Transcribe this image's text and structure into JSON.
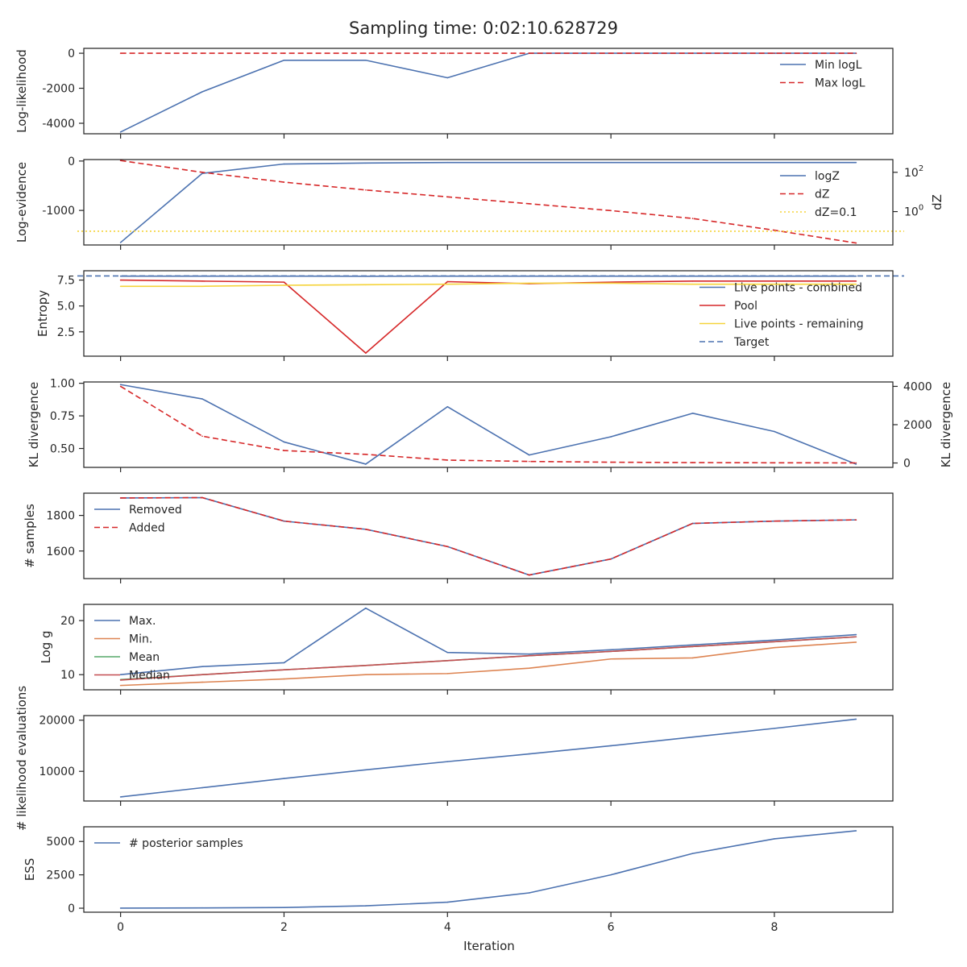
{
  "title": "Sampling time: 0:02:10.628729",
  "xlabel": "Iteration",
  "x_ticks": [
    "0",
    "2",
    "4",
    "6",
    "8"
  ],
  "colors": {
    "blue": "#4c72b0",
    "red": "#d62728",
    "yellow": "#f5d33a",
    "orange": "#dd8452",
    "green": "#55a868",
    "median_red": "#c44e52"
  },
  "chart_data": [
    {
      "type": "line",
      "ylabel": "Log-likelihood",
      "x": [
        0,
        1,
        2,
        3,
        4,
        5,
        6,
        7,
        8,
        9
      ],
      "ylim": [
        -4600,
        280
      ],
      "yticks": [
        -4000,
        -2000,
        0
      ],
      "legend": "top-right",
      "series": [
        {
          "name": "Min logL",
          "color": "#4c72b0",
          "dash": "solid",
          "values": [
            -4500,
            -2200,
            -400,
            -400,
            -1400,
            0,
            0,
            0,
            0,
            0
          ]
        },
        {
          "name": "Max logL",
          "color": "#d62728",
          "dash": "dashed",
          "values": [
            0,
            0,
            0,
            0,
            0,
            0,
            0,
            0,
            0,
            0
          ]
        }
      ]
    },
    {
      "type": "line",
      "ylabel": "Log-evidence",
      "ylabel_right": "dZ",
      "x": [
        0,
        1,
        2,
        3,
        4,
        5,
        6,
        7,
        8,
        9
      ],
      "ylim": [
        -1700,
        30
      ],
      "yticks": [
        -1000,
        0
      ],
      "right_scale": "log",
      "right_ylim_log10": [
        -1.7,
        2.65
      ],
      "right_yticks": [
        {
          "label": "10",
          "exp": "2",
          "log10": 2
        },
        {
          "label": "10",
          "exp": "0",
          "log10": 0
        }
      ],
      "legend": "top-right",
      "series": [
        {
          "name": "logZ",
          "color": "#4c72b0",
          "dash": "solid",
          "axis": "left",
          "values": [
            -1650,
            -250,
            -60,
            -40,
            -30,
            -30,
            -30,
            -30,
            -30,
            -30
          ]
        },
        {
          "name": "dZ",
          "color": "#d62728",
          "dash": "dashed",
          "axis": "right",
          "values_log10": [
            2.6,
            2.0,
            1.5,
            1.1,
            0.75,
            0.4,
            0.05,
            -0.35,
            -0.95,
            -1.6
          ]
        },
        {
          "name": "dZ=0.1",
          "color": "#f5d33a",
          "dash": "dotted",
          "axis": "right",
          "hline_log10": -1
        }
      ]
    },
    {
      "type": "line",
      "ylabel": "Entropy",
      "x": [
        0,
        1,
        2,
        3,
        4,
        5,
        6,
        7,
        8,
        9
      ],
      "ylim": [
        0.15,
        8.4
      ],
      "yticks": [
        2.5,
        5.0,
        7.5
      ],
      "ytick_labels": [
        "2.5",
        "5.0",
        "7.5"
      ],
      "legend": "bottom-right",
      "series": [
        {
          "name": "Live points - combined",
          "color": "#4c72b0",
          "dash": "solid",
          "values": [
            7.88,
            7.88,
            7.88,
            7.87,
            7.88,
            7.88,
            7.88,
            7.88,
            7.88,
            7.88
          ]
        },
        {
          "name": "Pool",
          "color": "#d62728",
          "dash": "solid",
          "values": [
            7.5,
            7.4,
            7.3,
            0.45,
            7.35,
            7.15,
            7.3,
            7.4,
            7.4,
            7.4
          ]
        },
        {
          "name": "Live points - remaining",
          "color": "#f5d33a",
          "dash": "solid",
          "values": [
            6.9,
            6.9,
            7.0,
            7.05,
            7.1,
            7.2,
            7.2,
            7.1,
            7.1,
            7.1
          ]
        },
        {
          "name": "Target",
          "color": "#4c72b0",
          "dash": "dashed",
          "hline": 7.9
        }
      ]
    },
    {
      "type": "line",
      "ylabel": "KL divergence",
      "ylabel_right": "KL divergence",
      "x": [
        0,
        1,
        2,
        3,
        4,
        5,
        6,
        7,
        8,
        9
      ],
      "ylim": [
        0.355,
        1.01
      ],
      "yticks": [
        0.5,
        0.75,
        1.0
      ],
      "ytick_labels": [
        "0.50",
        "0.75",
        "1.00"
      ],
      "right_ylim": [
        -230,
        4230
      ],
      "right_yticks": [
        0,
        2000,
        4000
      ],
      "series": [
        {
          "color": "#4c72b0",
          "dash": "solid",
          "axis": "left",
          "values": [
            0.99,
            0.88,
            0.55,
            0.38,
            0.82,
            0.45,
            0.59,
            0.77,
            0.63,
            0.38
          ]
        },
        {
          "color": "#d62728",
          "dash": "dashed",
          "axis": "right",
          "values": [
            4000,
            1400,
            650,
            450,
            150,
            80,
            40,
            20,
            10,
            5
          ]
        }
      ]
    },
    {
      "type": "line",
      "ylabel": "# samples",
      "x": [
        0,
        1,
        2,
        3,
        4,
        5,
        6,
        7,
        8,
        9
      ],
      "ylim": [
        1445,
        1925
      ],
      "yticks": [
        1600,
        1800
      ],
      "legend": "top-left",
      "series": [
        {
          "name": "Removed",
          "color": "#4c72b0",
          "dash": "solid",
          "values": [
            1898,
            1900,
            1768,
            1722,
            1625,
            1465,
            1555,
            1755,
            1768,
            1775
          ]
        },
        {
          "name": "Added",
          "color": "#d62728",
          "dash": "dashed",
          "values": [
            1898,
            1900,
            1768,
            1722,
            1625,
            1465,
            1555,
            1755,
            1768,
            1775
          ]
        }
      ]
    },
    {
      "type": "line",
      "ylabel": "Log g",
      "x": [
        0,
        1,
        2,
        3,
        4,
        5,
        6,
        7,
        8,
        9
      ],
      "ylim": [
        7.2,
        23.0
      ],
      "yticks": [
        10,
        20
      ],
      "legend": "top-left",
      "series": [
        {
          "name": "Max.",
          "color": "#4c72b0",
          "dash": "solid",
          "values": [
            10.0,
            11.5,
            12.2,
            22.3,
            14.1,
            13.8,
            14.6,
            15.5,
            16.4,
            17.4
          ]
        },
        {
          "name": "Min.",
          "color": "#dd8452",
          "dash": "solid",
          "values": [
            8.0,
            8.6,
            9.2,
            10.0,
            10.2,
            11.2,
            12.9,
            13.1,
            15.0,
            16.0
          ]
        },
        {
          "name": "Mean",
          "color": "#55a868",
          "dash": "solid",
          "values": [
            9.1,
            10.0,
            10.9,
            11.7,
            12.6,
            13.5,
            14.3,
            15.2,
            16.1,
            17.0
          ]
        },
        {
          "name": "Median",
          "color": "#c44e52",
          "dash": "solid",
          "values": [
            9.0,
            10.0,
            10.9,
            11.7,
            12.6,
            13.5,
            14.3,
            15.2,
            16.1,
            17.0
          ]
        }
      ]
    },
    {
      "type": "line",
      "ylabel": "# likelihood evaluations",
      "x": [
        0,
        1,
        2,
        3,
        4,
        5,
        6,
        7,
        8,
        9
      ],
      "ylim": [
        4200,
        20900
      ],
      "yticks": [
        10000,
        20000
      ],
      "series": [
        {
          "color": "#4c72b0",
          "dash": "solid",
          "values": [
            5000,
            6800,
            8600,
            10300,
            11900,
            13400,
            15000,
            16700,
            18400,
            20200
          ]
        }
      ]
    },
    {
      "type": "line",
      "ylabel": "ESS",
      "x": [
        0,
        1,
        2,
        3,
        4,
        5,
        6,
        7,
        8,
        9
      ],
      "ylim": [
        -300,
        6100
      ],
      "yticks": [
        0,
        2500,
        5000
      ],
      "legend": "top-left",
      "series": [
        {
          "name": "# posterior samples",
          "color": "#4c72b0",
          "dash": "solid",
          "values": [
            5,
            20,
            50,
            180,
            450,
            1150,
            2500,
            4100,
            5200,
            5800
          ]
        }
      ]
    }
  ]
}
